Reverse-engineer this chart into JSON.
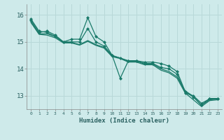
{
  "title": "",
  "xlabel": "Humidex (Indice chaleur)",
  "bg_color": "#ceeaea",
  "line_color": "#1a7a6a",
  "grid_color_major": "#b8d8d8",
  "grid_color_minor": "#d8ecec",
  "xlim": [
    -0.5,
    23.5
  ],
  "ylim": [
    12.5,
    16.4
  ],
  "yticks": [
    13,
    14,
    15,
    16
  ],
  "xticks": [
    0,
    1,
    2,
    3,
    4,
    5,
    6,
    7,
    8,
    9,
    10,
    11,
    12,
    13,
    14,
    15,
    16,
    17,
    18,
    19,
    20,
    21,
    22,
    23
  ],
  "series": [
    {
      "x": [
        0,
        1,
        2,
        3,
        4,
        5,
        6,
        7,
        8,
        9,
        10,
        11,
        12,
        13,
        14,
        15,
        16,
        17,
        18,
        19,
        20,
        21,
        22,
        23
      ],
      "y": [
        15.85,
        15.4,
        15.35,
        15.2,
        15.0,
        15.1,
        15.1,
        15.9,
        15.2,
        15.0,
        14.5,
        13.65,
        14.3,
        14.3,
        14.25,
        14.25,
        14.2,
        14.1,
        13.9,
        13.15,
        12.95,
        12.65,
        12.9,
        12.9
      ],
      "marker": "D",
      "ms": 2.0,
      "lw": 0.9
    },
    {
      "x": [
        0,
        1,
        2,
        3,
        4,
        5,
        6,
        7,
        8,
        9,
        10,
        11,
        12,
        13,
        14,
        15,
        16,
        17,
        18,
        19,
        20,
        21,
        22,
        23
      ],
      "y": [
        15.8,
        15.35,
        15.4,
        15.25,
        15.0,
        15.0,
        15.0,
        15.5,
        15.0,
        14.85,
        14.5,
        14.4,
        14.3,
        14.3,
        14.2,
        14.2,
        14.05,
        14.0,
        13.8,
        13.1,
        13.0,
        12.72,
        12.88,
        12.88
      ],
      "marker": "D",
      "ms": 2.0,
      "lw": 0.9
    },
    {
      "x": [
        0,
        1,
        2,
        3,
        4,
        5,
        6,
        7,
        8,
        9,
        10,
        11,
        12,
        13,
        14,
        15,
        16,
        17,
        18,
        19,
        20,
        21,
        22,
        23
      ],
      "y": [
        15.75,
        15.3,
        15.3,
        15.2,
        14.98,
        14.98,
        14.9,
        15.05,
        14.9,
        14.8,
        14.48,
        14.4,
        14.28,
        14.28,
        14.18,
        14.18,
        14.0,
        13.9,
        13.7,
        13.18,
        12.98,
        12.65,
        12.85,
        12.88
      ],
      "marker": null,
      "ms": 0,
      "lw": 0.9
    },
    {
      "x": [
        0,
        1,
        2,
        3,
        4,
        5,
        6,
        7,
        8,
        9,
        10,
        11,
        12,
        13,
        14,
        15,
        16,
        17,
        18,
        19,
        20,
        21,
        22,
        23
      ],
      "y": [
        15.72,
        15.28,
        15.25,
        15.15,
        14.96,
        14.96,
        14.88,
        15.02,
        14.87,
        14.77,
        14.45,
        14.38,
        14.25,
        14.25,
        14.15,
        14.15,
        13.95,
        13.85,
        13.65,
        13.1,
        12.85,
        12.6,
        12.82,
        12.85
      ],
      "marker": null,
      "ms": 0,
      "lw": 0.9
    }
  ]
}
